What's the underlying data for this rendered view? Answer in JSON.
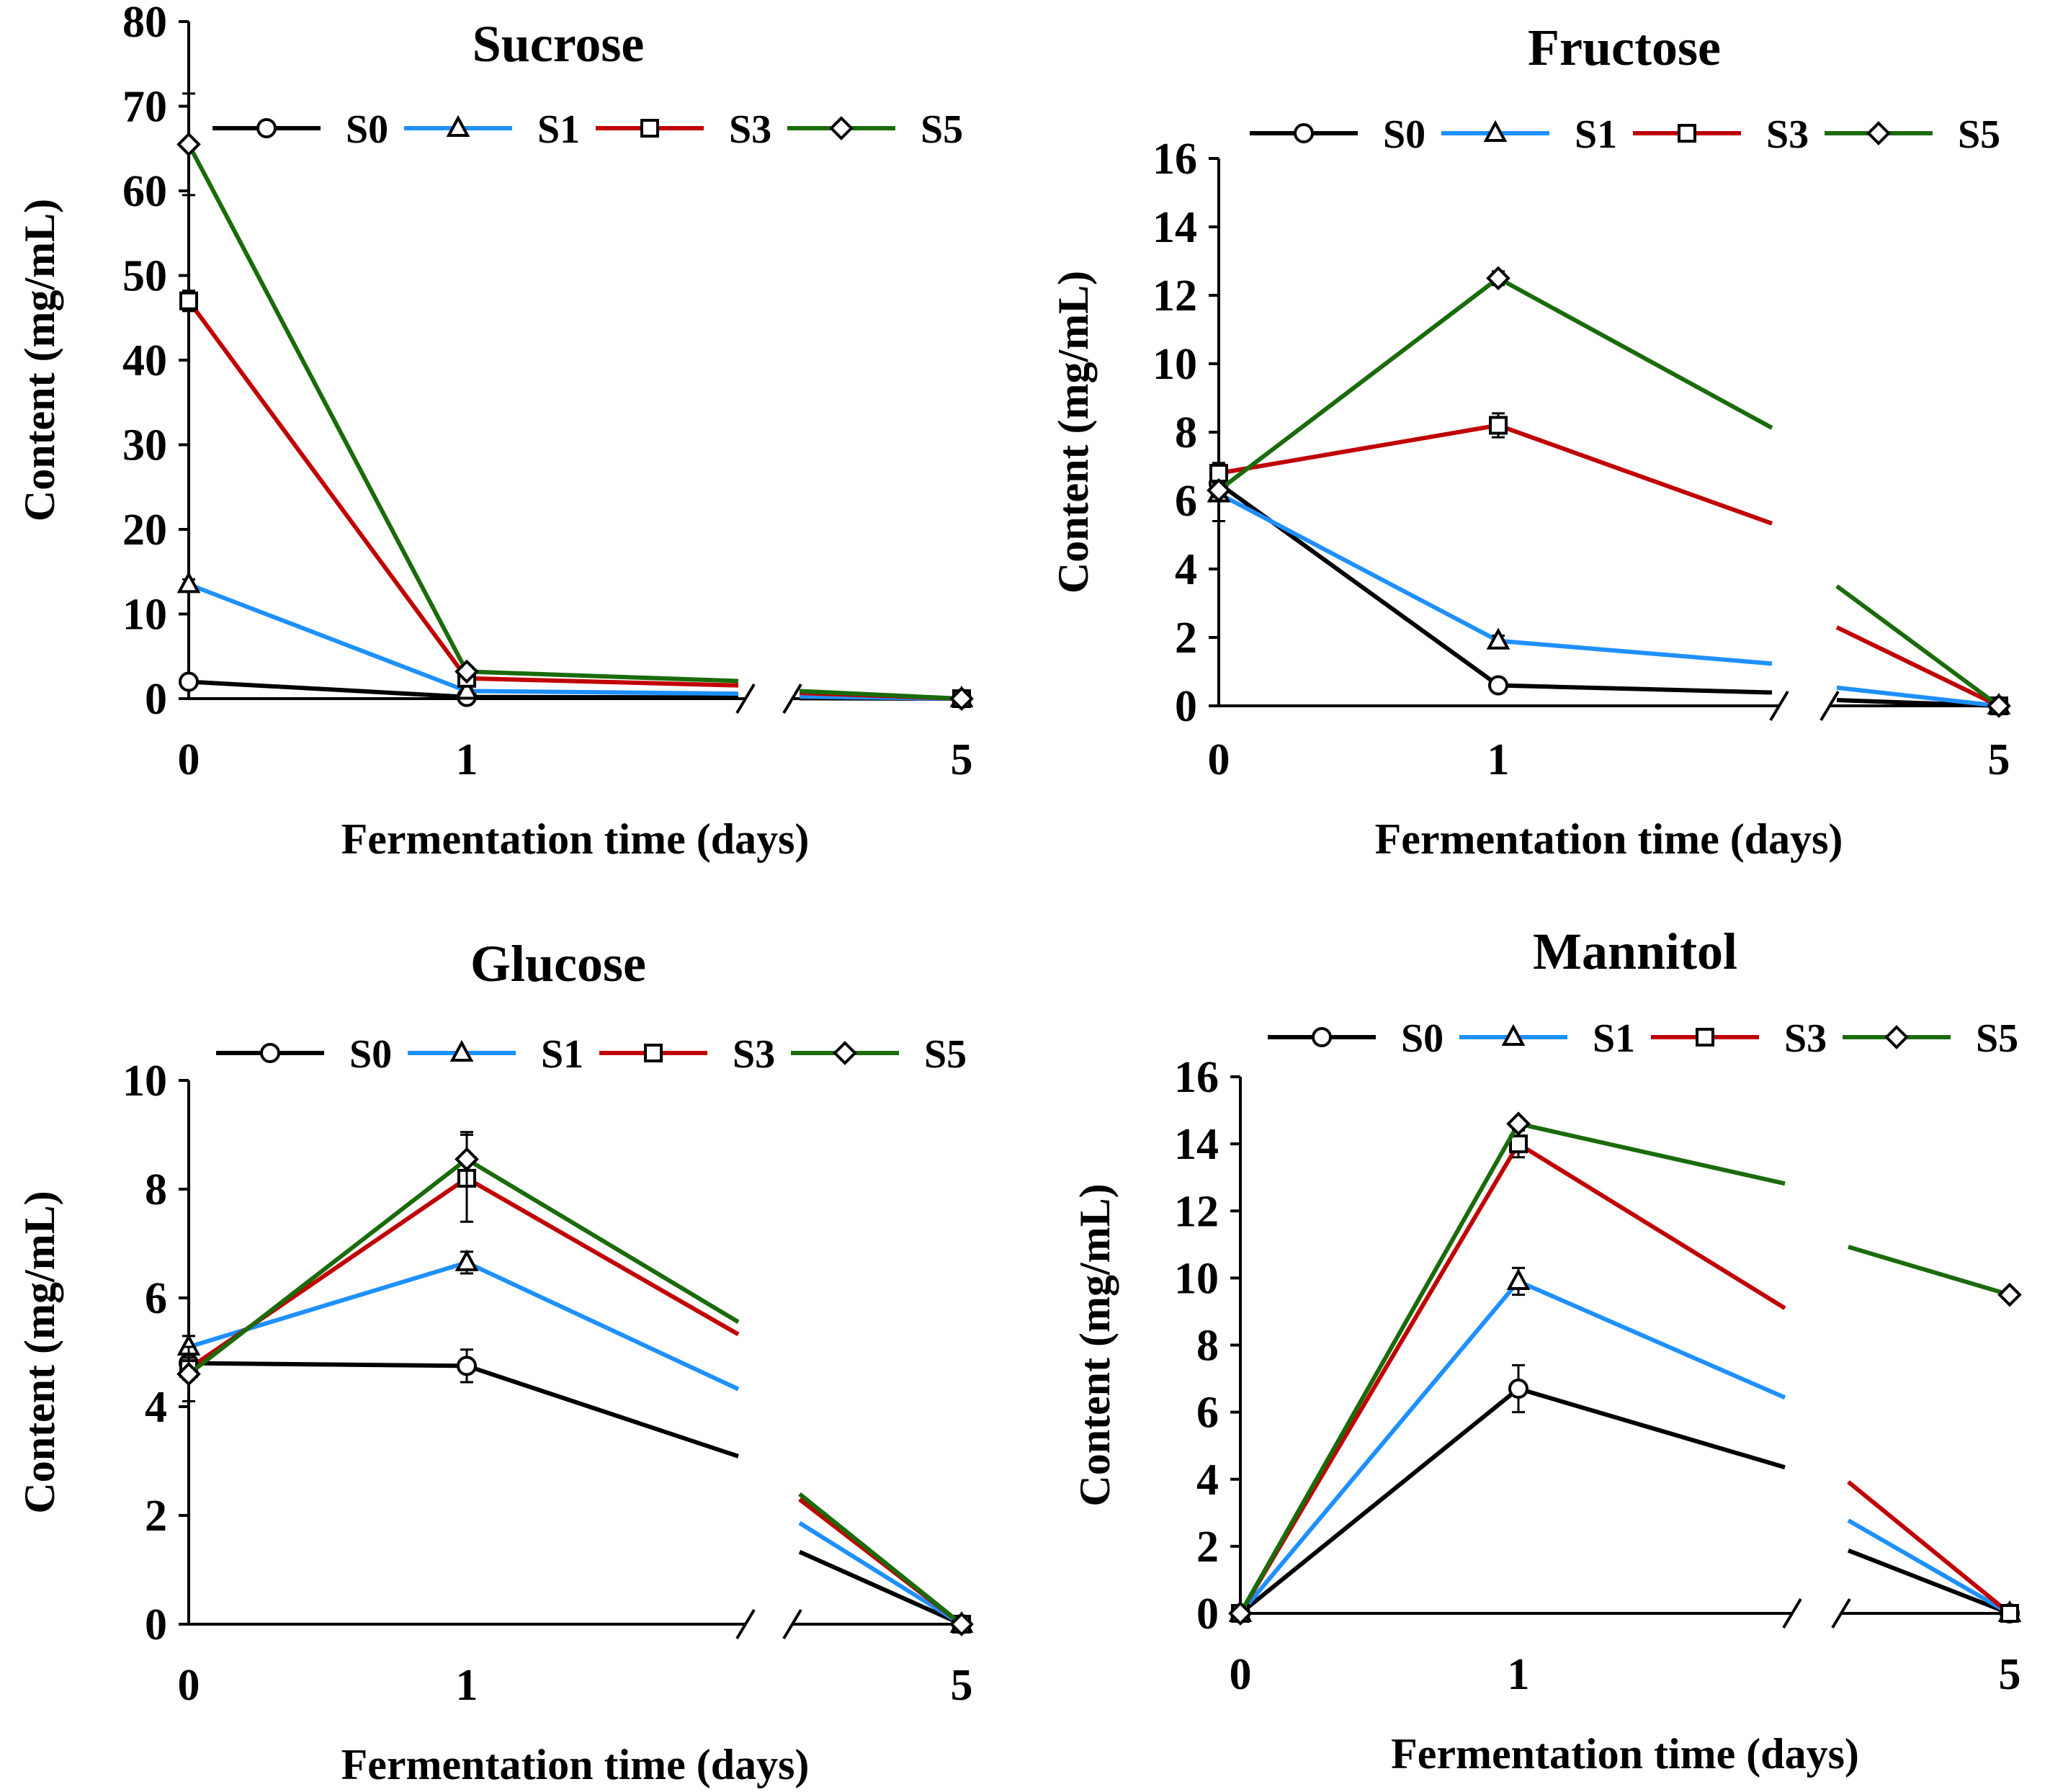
{
  "chart_data": [
    {
      "type": "line",
      "title": "Sucrose",
      "xlabel": "Fermentation time (days)",
      "ylabel": "Content (mg/mL)",
      "x": [
        0,
        1,
        5
      ],
      "xticks": [
        "0",
        "1",
        "5"
      ],
      "ylim": [
        0,
        80
      ],
      "yticks": [
        "0",
        "10",
        "20",
        "30",
        "40",
        "50",
        "60",
        "70",
        "80"
      ],
      "axis_break": "between 1 and 5",
      "legend_position": "top",
      "series": [
        {
          "name": "S0",
          "color": "#000000",
          "marker": "circle",
          "values": [
            2,
            0.2,
            0
          ],
          "errors": [
            0.3,
            0.1,
            0
          ]
        },
        {
          "name": "S1",
          "color": "#1E90FF",
          "marker": "triangle",
          "values": [
            13.5,
            0.9,
            0
          ],
          "errors": [
            0.6,
            0.2,
            0
          ]
        },
        {
          "name": "S3",
          "color": "#C00000",
          "marker": "square",
          "values": [
            47,
            2.4,
            0
          ],
          "errors": [
            1.2,
            0.3,
            0
          ]
        },
        {
          "name": "S5",
          "color": "#1A6B0A",
          "marker": "diamond",
          "values": [
            65.5,
            3.2,
            0
          ],
          "errors": [
            6,
            0.5,
            0
          ]
        }
      ]
    },
    {
      "type": "line",
      "title": "Fructose",
      "xlabel": "Fermentation time (days)",
      "ylabel": "Content (mg/mL)",
      "x": [
        0,
        1,
        5
      ],
      "xticks": [
        "0",
        "1",
        "5"
      ],
      "ylim": [
        0,
        16
      ],
      "yticks": [
        "0",
        "2",
        "4",
        "6",
        "8",
        "10",
        "12",
        "14",
        "16"
      ],
      "axis_break": "between 1 and 5",
      "legend_position": "top",
      "series": [
        {
          "name": "S0",
          "color": "#000000",
          "marker": "circle",
          "values": [
            6.5,
            0.6,
            0
          ],
          "errors": [
            0.2,
            0.1,
            0
          ]
        },
        {
          "name": "S1",
          "color": "#1E90FF",
          "marker": "triangle",
          "values": [
            6.2,
            1.9,
            0
          ],
          "errors": [
            0.8,
            0.15,
            0
          ]
        },
        {
          "name": "S3",
          "color": "#C00000",
          "marker": "square",
          "values": [
            6.8,
            8.2,
            0
          ],
          "errors": [
            0.3,
            0.35,
            0
          ]
        },
        {
          "name": "S5",
          "color": "#1A6B0A",
          "marker": "diamond",
          "values": [
            6.3,
            12.5,
            0
          ],
          "errors": [
            0.2,
            0.2,
            0
          ]
        }
      ]
    },
    {
      "type": "line",
      "title": "Glucose",
      "xlabel": "Fermentation time (days)",
      "ylabel": "Content (mg/mL)",
      "x": [
        0,
        1,
        5
      ],
      "xticks": [
        "0",
        "1",
        "5"
      ],
      "ylim": [
        0,
        10
      ],
      "yticks": [
        "0",
        "2",
        "4",
        "6",
        "8",
        "10"
      ],
      "axis_break": "between 1 and 5",
      "legend_position": "top",
      "series": [
        {
          "name": "S0",
          "color": "#000000",
          "marker": "circle",
          "values": [
            4.8,
            4.75,
            0
          ],
          "errors": [
            0.15,
            0.3,
            0
          ]
        },
        {
          "name": "S1",
          "color": "#1E90FF",
          "marker": "triangle",
          "values": [
            5.1,
            6.65,
            0
          ],
          "errors": [
            0.2,
            0.2,
            0
          ]
        },
        {
          "name": "S3",
          "color": "#C00000",
          "marker": "square",
          "values": [
            4.7,
            8.2,
            0
          ],
          "errors": [
            0.2,
            0.8,
            0
          ]
        },
        {
          "name": "S5",
          "color": "#1A6B0A",
          "marker": "diamond",
          "values": [
            4.6,
            8.55,
            0
          ],
          "errors": [
            0.5,
            0.5,
            0
          ]
        }
      ]
    },
    {
      "type": "line",
      "title": "Mannitol",
      "xlabel": "Fermentation time (days)",
      "ylabel": "Content (mg/mL)",
      "x": [
        0,
        1,
        5
      ],
      "xticks": [
        "0",
        "1",
        "5"
      ],
      "ylim": [
        0,
        16
      ],
      "yticks": [
        "0",
        "2",
        "4",
        "6",
        "8",
        "10",
        "12",
        "14",
        "16"
      ],
      "axis_break": "between 1 and 5",
      "legend_position": "top",
      "series": [
        {
          "name": "S0",
          "color": "#000000",
          "marker": "circle",
          "values": [
            0,
            6.7,
            0
          ],
          "errors": [
            0,
            0.7,
            0
          ]
        },
        {
          "name": "S1",
          "color": "#1E90FF",
          "marker": "triangle",
          "values": [
            0,
            9.9,
            0
          ],
          "errors": [
            0,
            0.4,
            0
          ]
        },
        {
          "name": "S3",
          "color": "#C00000",
          "marker": "square",
          "values": [
            0,
            14,
            0
          ],
          "errors": [
            0,
            0.4,
            0
          ]
        },
        {
          "name": "S5",
          "color": "#1A6B0A",
          "marker": "diamond",
          "values": [
            0,
            14.6,
            9.5
          ],
          "errors": [
            0,
            0.15,
            0
          ]
        }
      ]
    }
  ]
}
